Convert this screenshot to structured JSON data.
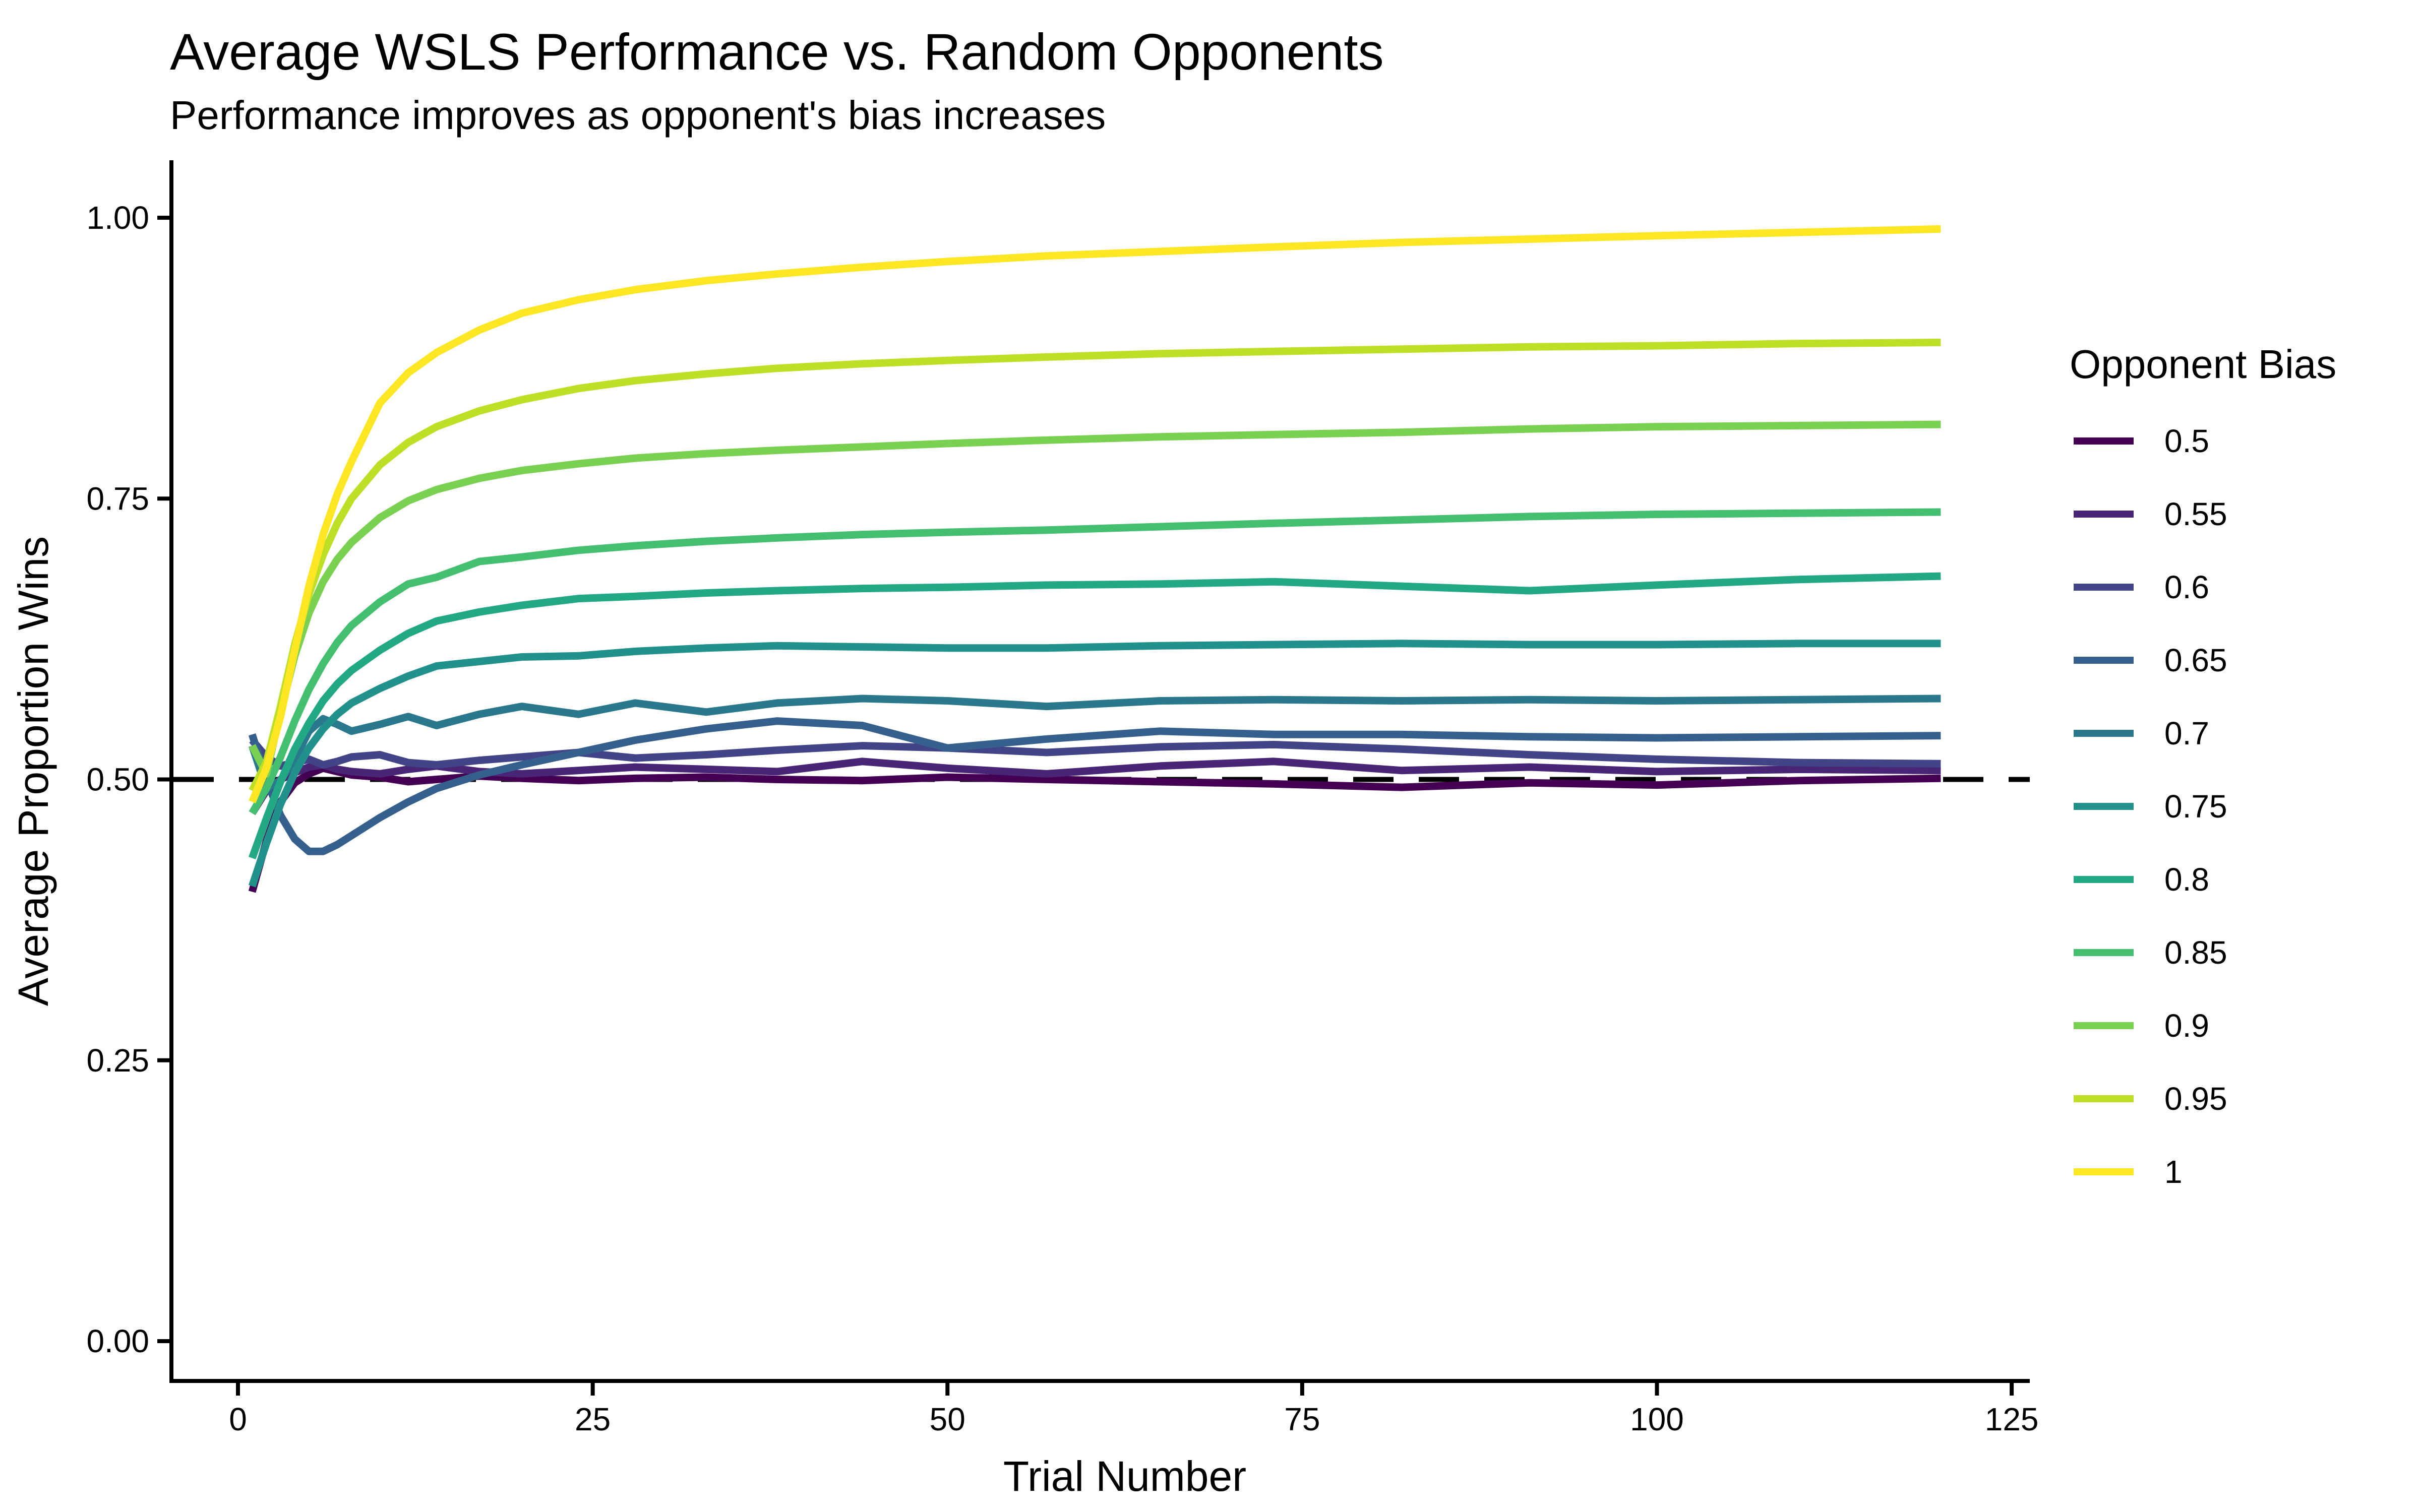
{
  "chart_data": {
    "type": "line",
    "title": "Average WSLS Performance vs. Random Opponents",
    "subtitle": "Performance improves as opponent's bias increases",
    "xlabel": "Trial Number",
    "ylabel": "Average Proportion Wins",
    "legend_title": "Opponent Bias",
    "xlim": [
      0,
      125
    ],
    "ylim": [
      0,
      1
    ],
    "grid": false,
    "legend_position": "right",
    "background": "#ffffff",
    "axis_color": "#000000",
    "reference_line": {
      "y": 0.5,
      "style": "dashed",
      "color": "#000000"
    },
    "x_ticks": [
      {
        "v": 0,
        "label": "0"
      },
      {
        "v": 25,
        "label": "25"
      },
      {
        "v": 50,
        "label": "50"
      },
      {
        "v": 75,
        "label": "75"
      },
      {
        "v": 100,
        "label": "100"
      },
      {
        "v": 125,
        "label": "125"
      }
    ],
    "y_ticks": [
      {
        "v": 0.0,
        "label": "0.00"
      },
      {
        "v": 0.25,
        "label": "0.25"
      },
      {
        "v": 0.5,
        "label": "0.50"
      },
      {
        "v": 0.75,
        "label": "0.75"
      },
      {
        "v": 1.0,
        "label": "1.00"
      }
    ],
    "x": [
      1,
      2,
      3,
      4,
      5,
      6,
      7,
      8,
      10,
      12,
      14,
      17,
      20,
      24,
      28,
      33,
      38,
      44,
      50,
      57,
      65,
      73,
      82,
      91,
      100,
      110,
      120
    ],
    "series": [
      {
        "name": "0.5",
        "color": "#440154",
        "values": [
          0.4,
          0.445,
          0.48,
          0.497,
          0.505,
          0.51,
          0.507,
          0.504,
          0.502,
          0.498,
          0.5,
          0.503,
          0.501,
          0.499,
          0.501,
          0.502,
          0.5,
          0.499,
          0.502,
          0.5,
          0.498,
          0.496,
          0.493,
          0.497,
          0.495,
          0.499,
          0.501
        ]
      },
      {
        "name": "0.55",
        "color": "#482576",
        "values": [
          0.47,
          0.49,
          0.5,
          0.506,
          0.511,
          0.513,
          0.509,
          0.507,
          0.505,
          0.509,
          0.512,
          0.507,
          0.505,
          0.508,
          0.511,
          0.509,
          0.507,
          0.516,
          0.51,
          0.505,
          0.512,
          0.516,
          0.508,
          0.511,
          0.507,
          0.509,
          0.508
        ]
      },
      {
        "name": "0.6",
        "color": "#414487",
        "values": [
          0.535,
          0.52,
          0.512,
          0.515,
          0.518,
          0.513,
          0.516,
          0.52,
          0.522,
          0.515,
          0.513,
          0.517,
          0.52,
          0.524,
          0.519,
          0.522,
          0.526,
          0.53,
          0.528,
          0.524,
          0.529,
          0.531,
          0.527,
          0.522,
          0.518,
          0.515,
          0.514
        ]
      },
      {
        "name": "0.65",
        "color": "#35608D",
        "values": [
          0.54,
          0.5,
          0.468,
          0.447,
          0.436,
          0.436,
          0.442,
          0.45,
          0.466,
          0.48,
          0.492,
          0.504,
          0.513,
          0.524,
          0.535,
          0.545,
          0.552,
          0.548,
          0.528,
          0.536,
          0.543,
          0.54,
          0.54,
          0.538,
          0.537,
          0.538,
          0.539
        ]
      },
      {
        "name": "0.7",
        "color": "#2A788E",
        "values": [
          0.53,
          0.492,
          0.499,
          0.518,
          0.543,
          0.554,
          0.549,
          0.543,
          0.549,
          0.556,
          0.548,
          0.558,
          0.565,
          0.558,
          0.568,
          0.56,
          0.568,
          0.572,
          0.57,
          0.565,
          0.57,
          0.571,
          0.57,
          0.571,
          0.57,
          0.571,
          0.572
        ]
      },
      {
        "name": "0.75",
        "color": "#21918C",
        "values": [
          0.405,
          0.443,
          0.478,
          0.506,
          0.528,
          0.545,
          0.558,
          0.568,
          0.581,
          0.592,
          0.601,
          0.605,
          0.609,
          0.61,
          0.614,
          0.617,
          0.619,
          0.618,
          0.617,
          0.617,
          0.619,
          0.62,
          0.621,
          0.62,
          0.62,
          0.621,
          0.621
        ]
      },
      {
        "name": "0.8",
        "color": "#22A884",
        "values": [
          0.43,
          0.465,
          0.498,
          0.527,
          0.55,
          0.57,
          0.585,
          0.597,
          0.615,
          0.63,
          0.641,
          0.649,
          0.655,
          0.661,
          0.663,
          0.666,
          0.668,
          0.67,
          0.671,
          0.673,
          0.674,
          0.676,
          0.672,
          0.668,
          0.673,
          0.678,
          0.681
        ]
      },
      {
        "name": "0.85",
        "color": "#44BF70",
        "values": [
          0.47,
          0.492,
          0.52,
          0.552,
          0.58,
          0.603,
          0.622,
          0.637,
          0.658,
          0.674,
          0.68,
          0.694,
          0.698,
          0.704,
          0.708,
          0.712,
          0.715,
          0.718,
          0.72,
          0.722,
          0.725,
          0.728,
          0.731,
          0.734,
          0.736,
          0.737,
          0.738
        ]
      },
      {
        "name": "0.9",
        "color": "#7AD151",
        "values": [
          0.53,
          0.505,
          0.56,
          0.61,
          0.648,
          0.676,
          0.696,
          0.711,
          0.733,
          0.748,
          0.758,
          0.768,
          0.775,
          0.781,
          0.786,
          0.79,
          0.793,
          0.796,
          0.799,
          0.802,
          0.805,
          0.807,
          0.809,
          0.812,
          0.814,
          0.815,
          0.816
        ]
      },
      {
        "name": "0.95",
        "color": "#BDDF26",
        "values": [
          0.49,
          0.515,
          0.565,
          0.62,
          0.665,
          0.7,
          0.728,
          0.75,
          0.78,
          0.8,
          0.814,
          0.828,
          0.838,
          0.848,
          0.855,
          0.861,
          0.866,
          0.87,
          0.873,
          0.876,
          0.879,
          0.881,
          0.883,
          0.885,
          0.886,
          0.888,
          0.889
        ]
      },
      {
        "name": "1",
        "color": "#FDE725",
        "values": [
          0.48,
          0.51,
          0.556,
          0.615,
          0.672,
          0.718,
          0.754,
          0.783,
          0.835,
          0.862,
          0.88,
          0.9,
          0.915,
          0.927,
          0.936,
          0.944,
          0.95,
          0.956,
          0.961,
          0.966,
          0.97,
          0.974,
          0.978,
          0.981,
          0.984,
          0.987,
          0.99
        ]
      }
    ]
  }
}
